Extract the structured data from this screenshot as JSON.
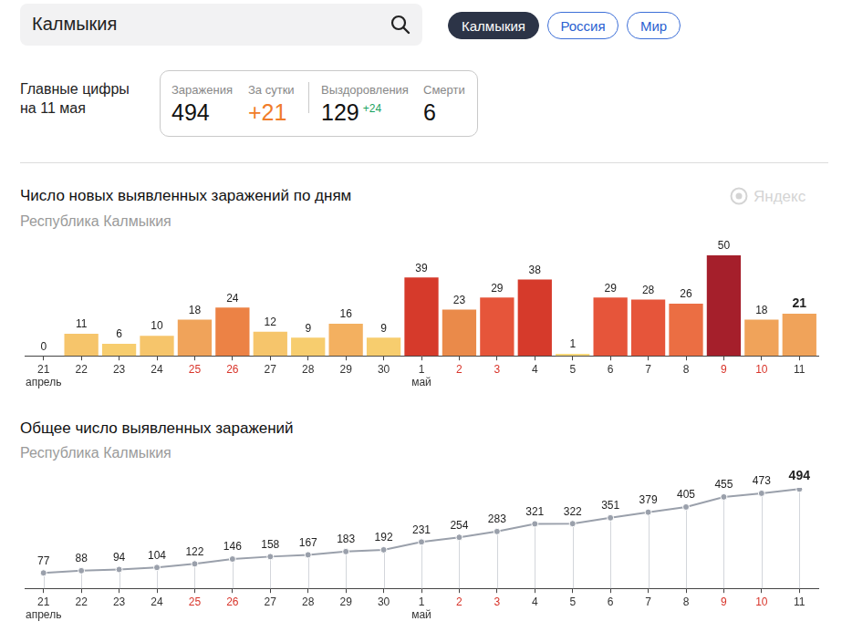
{
  "search": {
    "text": "Калмыкия"
  },
  "tabs": [
    {
      "label": "Калмыкия",
      "active": true
    },
    {
      "label": "Россия",
      "active": false
    },
    {
      "label": "Мир",
      "active": false
    }
  ],
  "summary": {
    "title": "Главные цифры\nна 11 мая",
    "items": [
      {
        "label": "Заражения",
        "value": "494"
      },
      {
        "label": "За сутки",
        "value": "+21"
      },
      {
        "label": "Выздоровления",
        "value": "129",
        "delta": "+24"
      },
      {
        "label": "Смерти",
        "value": "6"
      }
    ]
  },
  "watermark": "Яндекс",
  "chart_data": [
    {
      "type": "bar",
      "title": "Число новых выявленных заражений по дням",
      "subtitle": "Республика Калмыкия",
      "categories": [
        [
          "21",
          "апрель"
        ],
        "22",
        "23",
        "24",
        "25",
        "26",
        "27",
        "28",
        "29",
        "30",
        [
          "1",
          "май"
        ],
        "2",
        "3",
        "4",
        "5",
        "6",
        "7",
        "8",
        "9",
        "10",
        "11"
      ],
      "holidays": [
        "25",
        "26",
        "2",
        "3",
        "9",
        "10"
      ],
      "values": [
        0,
        11,
        6,
        10,
        18,
        24,
        12,
        9,
        16,
        9,
        39,
        23,
        29,
        38,
        1,
        29,
        28,
        26,
        50,
        18,
        21
      ],
      "colors": [
        "#f6c56b",
        "#f6c56b",
        "#f7cd6e",
        "#f6c56b",
        "#f0a35a",
        "#ec8245",
        "#f6c56b",
        "#f7cd6e",
        "#f3b060",
        "#f7cd6e",
        "#d63a2b",
        "#ea8a4a",
        "#e6553a",
        "#d63a2b",
        "#f9d97a",
        "#e6553a",
        "#e6553a",
        "#eb6e43",
        "#a51f2b",
        "#f0a35a",
        "#f0a35a"
      ],
      "ylim": [
        0,
        50
      ],
      "grid": false,
      "data_labels": true,
      "tick_labels": "x"
    },
    {
      "type": "line",
      "title": "Общее число выявленных заражений",
      "subtitle": "Республика Калмыкия",
      "categories": [
        [
          "21",
          "апрель"
        ],
        "22",
        "23",
        "24",
        "25",
        "26",
        "27",
        "28",
        "29",
        "30",
        [
          "1",
          "май"
        ],
        "2",
        "3",
        "4",
        "5",
        "6",
        "7",
        "8",
        "9",
        "10",
        "11"
      ],
      "holidays": [
        "25",
        "26",
        "2",
        "3",
        "9",
        "10"
      ],
      "values": [
        77,
        88,
        94,
        104,
        122,
        146,
        158,
        167,
        183,
        192,
        231,
        254,
        283,
        321,
        322,
        351,
        379,
        405,
        455,
        473,
        494
      ],
      "color": "#9aa0ab",
      "marker": "circle",
      "ylim": [
        0,
        500
      ],
      "grid": false,
      "data_labels": true,
      "tick_labels": "x"
    }
  ]
}
